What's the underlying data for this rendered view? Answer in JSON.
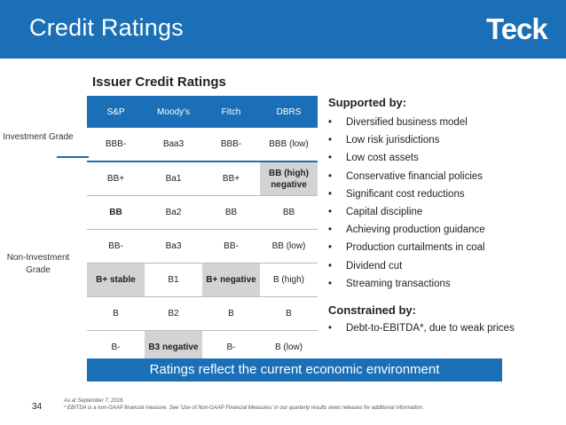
{
  "header": {
    "title": "Credit Ratings",
    "logo": "Teck"
  },
  "table": {
    "subtitle": "Issuer Credit Ratings",
    "columns": [
      "S&P",
      "Moody's",
      "Fitch",
      "DBRS"
    ],
    "rows": [
      [
        "BBB-",
        "Baa3",
        "BBB-",
        "BBB (low)"
      ],
      [
        "BB+",
        "Ba1",
        "BB+",
        "BB (high) negative"
      ],
      [
        "BB",
        "Ba2",
        "BB",
        "BB"
      ],
      [
        "BB-",
        "Ba3",
        "BB-",
        "BB (low)"
      ],
      [
        "B+ stable",
        "B1",
        "B+ negative",
        "B (high)"
      ],
      [
        "B",
        "B2",
        "B",
        "B"
      ],
      [
        "B-",
        "B3 negative",
        "B-",
        "B (low)"
      ]
    ],
    "investment_grade_label": "Investment Grade",
    "non_investment_grade_label": "Non-Investment Grade"
  },
  "supported": {
    "heading": "Supported by:",
    "bullet": "•",
    "items": [
      "Diversified business model",
      "Low risk jurisdictions",
      "Low cost assets",
      "Conservative financial policies",
      "Significant cost reductions",
      "Capital discipline",
      "Achieving production guidance",
      "Production curtailments in coal",
      "Dividend cut",
      "Streaming transactions"
    ]
  },
  "constrained": {
    "heading": "Constrained by:",
    "bullet": "•",
    "items": [
      "Debt-to-EBITDA*, due to weak prices"
    ]
  },
  "banner": "Ratings reflect the current economic environment",
  "footer": {
    "page_number": "34",
    "note_1": "As at September 7, 2016.",
    "note_2": "* EBITDA is a non-GAAP financial measure. See 'Use of Non-GAAP Financial Measures' in our quarterly results news releases for additional information."
  }
}
